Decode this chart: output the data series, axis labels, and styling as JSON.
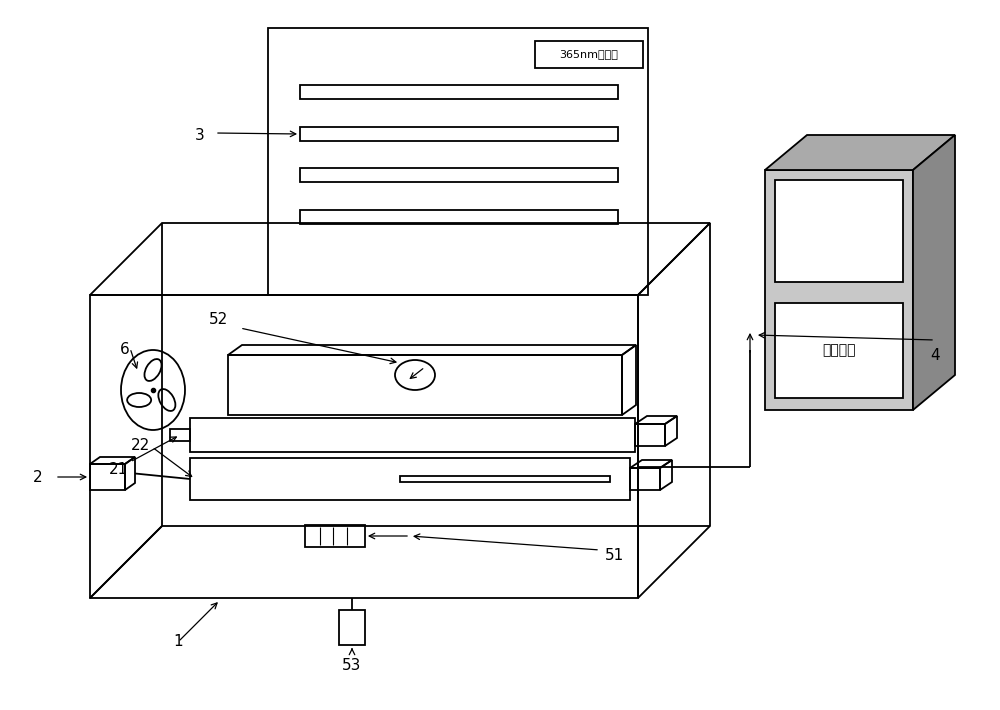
{
  "bg_color": "#ffffff",
  "line_color": "#000000",
  "uv_label": "365nm紫外灯",
  "lcd_label": "液晶显示",
  "label_fs": 11
}
